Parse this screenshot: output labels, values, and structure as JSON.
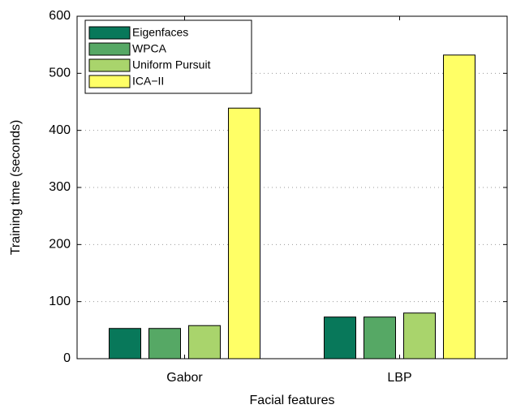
{
  "chart_data": {
    "type": "bar",
    "xlabel": "Facial features",
    "ylabel": "Training time (seconds)",
    "categories": [
      "Gabor",
      "LBP"
    ],
    "series": [
      {
        "name": "Eigenfaces",
        "color": "#08785a",
        "values": [
          53,
          73
        ]
      },
      {
        "name": "WPCA",
        "color": "#56a865",
        "values": [
          53,
          73
        ]
      },
      {
        "name": "Uniform Pursuit",
        "color": "#a9d46c",
        "values": [
          58,
          80
        ]
      },
      {
        "name": "ICA−II",
        "color": "#ffff66",
        "values": [
          439,
          532
        ]
      }
    ],
    "ylim": [
      0,
      600
    ],
    "yticks": [
      0,
      100,
      200,
      300,
      400,
      500,
      600
    ],
    "grid": true,
    "legend": "upper left"
  }
}
